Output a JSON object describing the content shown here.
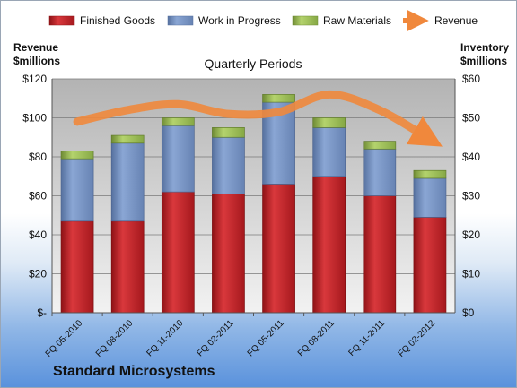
{
  "chart_data": {
    "type": "bar",
    "subtype": "stacked-bar-with-line",
    "title": "Quarterly Periods",
    "company": "Standard Microsystems",
    "categories": [
      "FQ 05-2010",
      "FQ 08-2010",
      "FQ 11-2010",
      "FQ 02-2011",
      "FQ 05-2011",
      "FQ 08-2011",
      "FQ 11-2011",
      "FQ 02-2012"
    ],
    "series": [
      {
        "name": "Finished Goods",
        "axis": "right",
        "color": "#c0262b",
        "values": [
          23.5,
          23.5,
          31,
          30.5,
          33,
          35,
          30,
          24.5
        ]
      },
      {
        "name": "Work in Progress",
        "axis": "right",
        "color": "#7f9bcb",
        "values": [
          16,
          20,
          17,
          14.5,
          21,
          12.5,
          12,
          10
        ]
      },
      {
        "name": "Raw Materials",
        "axis": "right",
        "color": "#9bbb59",
        "values": [
          2,
          2,
          2,
          2.5,
          2,
          2.5,
          2,
          2
        ]
      },
      {
        "name": "Revenue",
        "axis": "left",
        "type": "line",
        "color": "#f0883c",
        "values": [
          98,
          104,
          107,
          102,
          103,
          112,
          104,
          89
        ]
      }
    ],
    "left_axis": {
      "label_line1": "Revenue",
      "label_line2": "$millions",
      "range": [
        0,
        120
      ],
      "ticks": [
        "$-",
        "$20",
        "$40",
        "$60",
        "$80",
        "$100",
        "$120"
      ],
      "tick_values": [
        0,
        20,
        40,
        60,
        80,
        100,
        120
      ]
    },
    "right_axis": {
      "label_line1": "Inventory",
      "label_line2": "$millions",
      "range": [
        0,
        60
      ],
      "ticks": [
        "$0",
        "$10",
        "$20",
        "$30",
        "$40",
        "$50",
        "$60"
      ],
      "tick_values": [
        0,
        10,
        20,
        30,
        40,
        50,
        60
      ]
    },
    "grid": true,
    "legend_position": "top"
  }
}
